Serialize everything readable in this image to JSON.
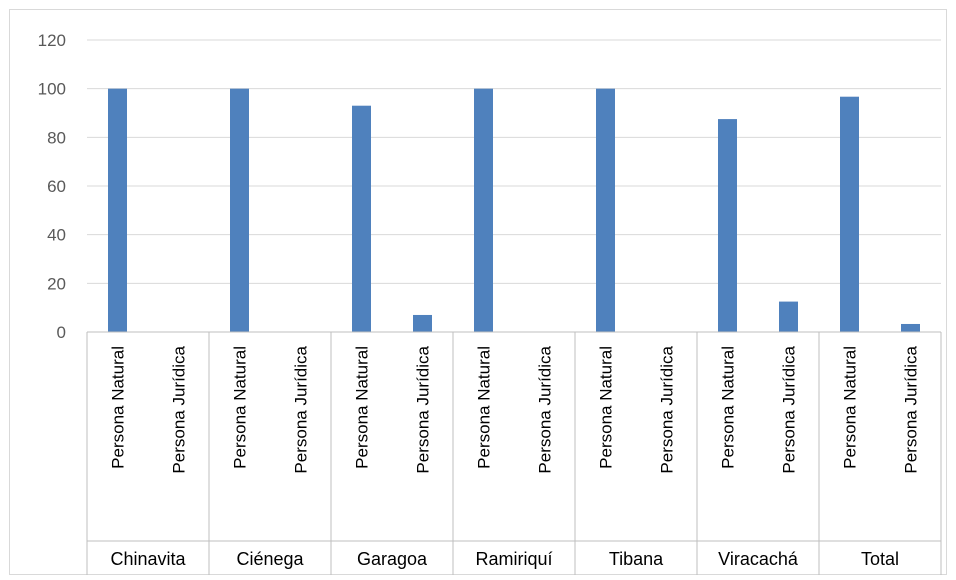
{
  "chart_data": {
    "type": "bar",
    "groups": [
      "Chinavita",
      "Ciénega",
      "Garagoa",
      "Ramiriquí",
      "Tibana",
      "Viracachá",
      "Total"
    ],
    "subcategories": [
      "Persona Natural",
      "Persona Jurídica"
    ],
    "series": [
      {
        "values": [
          100,
          0,
          100,
          0,
          93,
          7,
          100,
          0,
          100,
          0,
          87.5,
          12.5,
          96.7,
          3.3
        ]
      }
    ],
    "ylim": [
      0,
      120
    ],
    "yticks": [
      0,
      20,
      40,
      60,
      80,
      100,
      120
    ],
    "grid": true,
    "legend": "none",
    "title": "",
    "xlabel": "",
    "ylabel": "",
    "colors": {
      "bar": "#4F81BD",
      "grid": "#D9D9D9",
      "axis": "#BFBFBF",
      "border": "#D9D9D9"
    }
  }
}
